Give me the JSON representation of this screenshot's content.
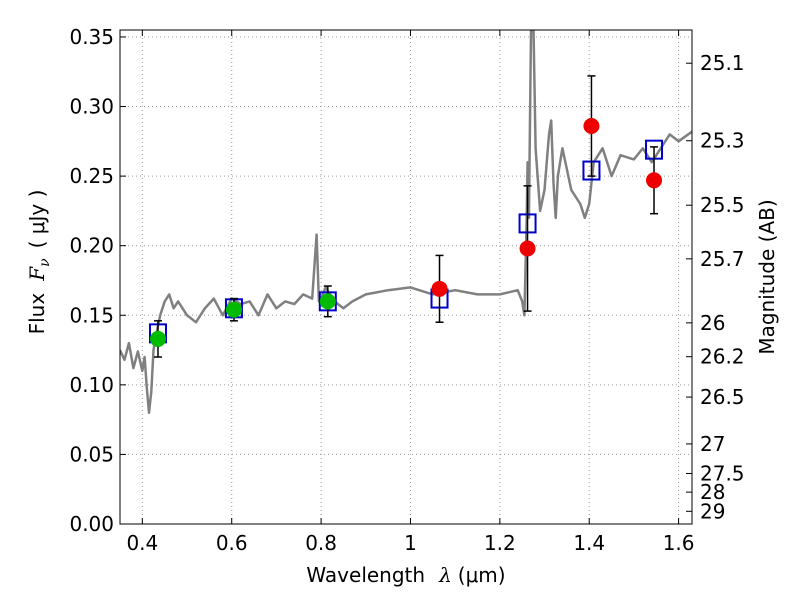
{
  "chart_data": {
    "type": "scatter",
    "xlabel_text": "Wavelength",
    "xlabel_symbol": "λ",
    "xlabel_unit": "(μm)",
    "ylabel_text": "Flux",
    "ylabel_symbol": "F",
    "ylabel_subscript": "ν",
    "ylabel_unit": "( μJy )",
    "y2label": "Magnitude (AB)",
    "xlim": [
      0.35,
      1.63
    ],
    "ylim": [
      0.0,
      0.355
    ],
    "grid": true,
    "x_ticks": [
      0.4,
      0.6,
      0.8,
      1.0,
      1.2,
      1.4,
      1.6
    ],
    "x_tick_labels": [
      "0.4",
      "0.6",
      "0.8",
      "1",
      "1.2",
      "1.4",
      "1.6"
    ],
    "y_ticks": [
      0.0,
      0.05,
      0.1,
      0.15,
      0.2,
      0.25,
      0.3,
      0.35
    ],
    "y_tick_labels": [
      "0.00",
      "0.05",
      "0.10",
      "0.15",
      "0.20",
      "0.25",
      "0.30",
      "0.35"
    ],
    "y2_tick_labels": [
      "25.1",
      "25.3",
      "25.5",
      "25.7",
      "26",
      "26.2",
      "26.5",
      "27",
      "27.5",
      "28",
      "29"
    ],
    "y2_tick_values": [
      25.1,
      25.3,
      25.5,
      25.7,
      26.0,
      26.2,
      26.5,
      27.0,
      27.5,
      28.0,
      29.0
    ],
    "colors": {
      "spectrum": "#808080",
      "model": "#0000cc",
      "optical": "#00bb00",
      "nir": "#ee0000",
      "errorbar": "#000000",
      "grid": "#999999"
    },
    "series": [
      {
        "kind": "spectrum-line",
        "x": [
          0.35,
          0.36,
          0.37,
          0.38,
          0.39,
          0.4,
          0.405,
          0.41,
          0.415,
          0.42,
          0.425,
          0.43,
          0.44,
          0.45,
          0.46,
          0.47,
          0.48,
          0.5,
          0.52,
          0.54,
          0.56,
          0.58,
          0.6,
          0.62,
          0.64,
          0.66,
          0.68,
          0.7,
          0.72,
          0.74,
          0.76,
          0.78,
          0.79,
          0.795,
          0.8,
          0.81,
          0.83,
          0.85,
          0.87,
          0.9,
          0.95,
          1.0,
          1.05,
          1.1,
          1.15,
          1.2,
          1.24,
          1.25,
          1.255,
          1.26,
          1.262,
          1.265,
          1.27,
          1.275,
          1.28,
          1.29,
          1.3,
          1.31,
          1.315,
          1.32,
          1.325,
          1.33,
          1.34,
          1.36,
          1.38,
          1.39,
          1.4,
          1.41,
          1.43,
          1.45,
          1.47,
          1.5,
          1.52,
          1.54,
          1.56,
          1.58,
          1.6,
          1.63
        ],
        "y": [
          0.125,
          0.118,
          0.13,
          0.112,
          0.124,
          0.11,
          0.12,
          0.098,
          0.08,
          0.095,
          0.125,
          0.135,
          0.15,
          0.16,
          0.165,
          0.155,
          0.16,
          0.15,
          0.145,
          0.155,
          0.162,
          0.15,
          0.162,
          0.158,
          0.16,
          0.15,
          0.165,
          0.155,
          0.16,
          0.158,
          0.165,
          0.162,
          0.208,
          0.16,
          0.162,
          0.17,
          0.16,
          0.155,
          0.16,
          0.165,
          0.168,
          0.17,
          0.165,
          0.168,
          0.165,
          0.165,
          0.168,
          0.16,
          0.15,
          0.22,
          0.26,
          0.22,
          0.36,
          0.36,
          0.27,
          0.225,
          0.24,
          0.28,
          0.29,
          0.245,
          0.22,
          0.25,
          0.27,
          0.24,
          0.23,
          0.22,
          0.23,
          0.26,
          0.27,
          0.25,
          0.265,
          0.262,
          0.27,
          0.26,
          0.27,
          0.28,
          0.275,
          0.282
        ]
      },
      {
        "kind": "model-squares",
        "x": [
          0.435,
          0.605,
          0.815,
          1.065,
          1.262,
          1.405,
          1.545
        ],
        "y": [
          0.137,
          0.155,
          0.16,
          0.162,
          0.216,
          0.254,
          0.269
        ]
      },
      {
        "kind": "optical-points",
        "x": [
          0.435,
          0.605,
          0.815
        ],
        "y": [
          0.133,
          0.154,
          0.16
        ],
        "err": [
          0.013,
          0.008,
          0.011
        ]
      },
      {
        "kind": "nir-points",
        "x": [
          1.065,
          1.262,
          1.405,
          1.545
        ],
        "y": [
          0.169,
          0.198,
          0.286,
          0.247
        ],
        "err": [
          0.024,
          0.045,
          0.036,
          0.024
        ]
      }
    ]
  }
}
